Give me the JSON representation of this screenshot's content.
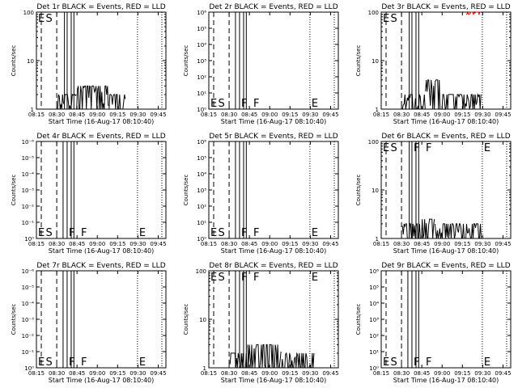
{
  "chart_data": [
    {
      "type": "line",
      "title": "Det 1r  BLACK = Events, RED = LLD",
      "xlabel": "Start Time (16-Aug-17 08:10:40)",
      "ylabel": "Counts/sec",
      "x_ticks": [
        "08:15",
        "08:30",
        "08:45",
        "09:00",
        "09:15",
        "09:30",
        "09:45"
      ],
      "y_ticks": [
        "1",
        "10",
        "100"
      ],
      "ylim": [
        1,
        100
      ],
      "y_scale": "log",
      "xlim_min": [
        4.3,
        100
      ],
      "dashed_lines_min": [
        4.3,
        19.3
      ],
      "solid_lines_min": [
        25,
        27,
        30,
        32
      ],
      "dotted_lines_min": [
        79,
        97
      ],
      "markers": [
        {
          "label": "E",
          "x_min": 4.3,
          "pos": "top"
        },
        {
          "label": "S",
          "x_min": 10,
          "pos": "top"
        }
      ],
      "series": [
        {
          "color": "#000000",
          "segments": [
            {
              "from": 20,
              "to": 34,
              "ymin": 1,
              "ymax": 2
            },
            {
              "from": 34,
              "to": 58,
              "ymin": 1,
              "ymax": 3
            },
            {
              "from": 58,
              "to": 70,
              "ymin": 1,
              "ymax": 2
            }
          ]
        }
      ]
    },
    {
      "type": "line",
      "title": "Det 2r  BLACK = Events, RED = LLD",
      "xlabel": "Start Time (16-Aug-17 08:10:40)",
      "ylabel": "Counts/sec",
      "x_ticks": [
        "08:15",
        "08:30",
        "08:45",
        "09:00",
        "09:15",
        "09:30",
        "09:45"
      ],
      "y_ticks": [
        "10⁰",
        "10¹",
        "10²",
        "10³",
        "10⁴",
        "10⁵",
        "10⁶"
      ],
      "ylim": [
        0,
        6
      ],
      "y_scale": "exponent",
      "xlim_min": [
        4.3,
        100
      ],
      "dashed_lines_min": [
        4.3,
        19.3
      ],
      "solid_lines_min": [
        24,
        27,
        30,
        32
      ],
      "dotted_lines_min": [
        79,
        97
      ],
      "markers": [
        {
          "label": "E",
          "x_min": 4.3,
          "pos": "bottom"
        },
        {
          "label": "S",
          "x_min": 10,
          "pos": "bottom"
        },
        {
          "label": "F",
          "x_min": 27,
          "pos": "bottom"
        },
        {
          "label": "F",
          "x_min": 36,
          "pos": "bottom"
        },
        {
          "label": "E",
          "x_min": 79,
          "pos": "bottom"
        }
      ],
      "series": []
    },
    {
      "type": "line",
      "title": "Det 3r  BLACK = Events, RED = LLD",
      "xlabel": "Start Time (16-Aug-17 08:10:40)",
      "ylabel": "Counts/sec",
      "x_ticks": [
        "08:15",
        "08:30",
        "08:45",
        "09:00",
        "09:15",
        "09:30",
        "09:45"
      ],
      "y_ticks": [
        "1",
        "10",
        "100"
      ],
      "ylim": [
        1,
        100
      ],
      "y_scale": "log",
      "xlim_min": [
        4.3,
        100
      ],
      "dashed_lines_min": [
        4.3,
        19.3
      ],
      "solid_lines_min": [
        25,
        27,
        30,
        32
      ],
      "dotted_lines_min": [
        79,
        97
      ],
      "markers": [
        {
          "label": "E",
          "x_min": 4.3,
          "pos": "top"
        },
        {
          "label": "S",
          "x_min": 10,
          "pos": "top"
        }
      ],
      "series": [
        {
          "color": "#000000",
          "segments": [
            {
              "from": 20,
              "to": 37,
              "ymin": 1,
              "ymax": 2
            },
            {
              "from": 37,
              "to": 48,
              "ymin": 1,
              "ymax": 4
            },
            {
              "from": 48,
              "to": 78,
              "ymin": 1,
              "ymax": 2
            }
          ]
        },
        {
          "color": "#ff0000",
          "segments": [
            {
              "from": 67,
              "to": 78,
              "ymin": 90,
              "ymax": 100
            }
          ]
        }
      ]
    },
    {
      "type": "line",
      "title": "Det 4r  BLACK = Events, RED = LLD",
      "xlabel": "Start Time (16-Aug-17 08:10:40)",
      "ylabel": "Counts/sec",
      "x_ticks": [
        "08:15",
        "08:30",
        "08:45",
        "09:00",
        "09:15",
        "09:30",
        "09:45"
      ],
      "y_ticks": [
        "10⁰",
        "10⁻¹",
        "10⁻²",
        "10⁻³",
        "10⁻⁴",
        "10⁻⁵",
        "10⁻⁶"
      ],
      "ylim": [
        0,
        6
      ],
      "y_scale": "exponent",
      "xlim_min": [
        4.3,
        100
      ],
      "dashed_lines_min": [
        4.3,
        19.3
      ],
      "solid_lines_min": [
        24,
        27,
        30,
        32
      ],
      "dotted_lines_min": [
        79,
        97
      ],
      "markers": [
        {
          "label": "E",
          "x_min": 4.3,
          "pos": "bottom"
        },
        {
          "label": "S",
          "x_min": 10,
          "pos": "bottom"
        },
        {
          "label": "F",
          "x_min": 27,
          "pos": "bottom"
        },
        {
          "label": "F",
          "x_min": 36,
          "pos": "bottom"
        },
        {
          "label": "E",
          "x_min": 79,
          "pos": "bottom"
        }
      ],
      "series": []
    },
    {
      "type": "line",
      "title": "Det 5r  BLACK = Events, RED = LLD",
      "xlabel": "Start Time (16-Aug-17 08:10:40)",
      "ylabel": "Counts/sec",
      "x_ticks": [
        "08:15",
        "08:30",
        "08:45",
        "09:00",
        "09:15",
        "09:30",
        "09:45"
      ],
      "y_ticks": [
        "10⁰",
        "10¹",
        "10²",
        "10³",
        "10⁴",
        "10⁵",
        "10⁶"
      ],
      "ylim": [
        0,
        6
      ],
      "y_scale": "exponent",
      "xlim_min": [
        4.3,
        100
      ],
      "dashed_lines_min": [
        4.3,
        19.3
      ],
      "solid_lines_min": [
        24,
        27,
        30,
        32
      ],
      "dotted_lines_min": [
        79,
        97
      ],
      "markers": [
        {
          "label": "E",
          "x_min": 4.3,
          "pos": "bottom"
        },
        {
          "label": "S",
          "x_min": 10,
          "pos": "bottom"
        },
        {
          "label": "F",
          "x_min": 27,
          "pos": "bottom"
        },
        {
          "label": "F",
          "x_min": 36,
          "pos": "bottom"
        },
        {
          "label": "E",
          "x_min": 79,
          "pos": "bottom"
        }
      ],
      "series": []
    },
    {
      "type": "line",
      "title": "Det 6r  BLACK = Events, RED = LLD",
      "xlabel": "Start Time (16-Aug-17 08:10:40)",
      "ylabel": "Counts/sec",
      "x_ticks": [
        "08:15",
        "08:30",
        "08:45",
        "09:00",
        "09:15",
        "09:30",
        "09:45"
      ],
      "y_ticks": [
        "1",
        "10",
        "100"
      ],
      "ylim": [
        1,
        100
      ],
      "y_scale": "log",
      "xlim_min": [
        4.3,
        100
      ],
      "dashed_lines_min": [
        4.3,
        19.3
      ],
      "solid_lines_min": [
        25,
        27,
        30,
        32
      ],
      "dotted_lines_min": [
        79,
        97
      ],
      "markers": [
        {
          "label": "E",
          "x_min": 4.3,
          "pos": "top"
        },
        {
          "label": "S",
          "x_min": 10,
          "pos": "top"
        },
        {
          "label": "F",
          "x_min": 27,
          "pos": "top"
        },
        {
          "label": "F",
          "x_min": 36,
          "pos": "top"
        },
        {
          "label": "E",
          "x_min": 79,
          "pos": "top"
        }
      ],
      "series": [
        {
          "color": "#000000",
          "segments": [
            {
              "from": 20,
              "to": 34,
              "ymin": 1,
              "ymax": 2
            },
            {
              "from": 34,
              "to": 44,
              "ymin": 1,
              "ymax": 2.5
            },
            {
              "from": 44,
              "to": 79,
              "ymin": 1,
              "ymax": 2
            }
          ]
        }
      ]
    },
    {
      "type": "line",
      "title": "Det 7r  BLACK = Events, RED = LLD",
      "xlabel": "Start Time (16-Aug-17 08:10:40)",
      "ylabel": "Counts/sec",
      "x_ticks": [
        "08:15",
        "08:30",
        "08:45",
        "09:00",
        "09:15",
        "09:30",
        "09:45"
      ],
      "y_ticks": [
        "10⁰",
        "10⁻¹",
        "10⁻²",
        "10⁻³",
        "10⁻⁴",
        "10⁻⁵",
        "10⁻⁶"
      ],
      "ylim": [
        0,
        6
      ],
      "y_scale": "exponent",
      "xlim_min": [
        4.3,
        100
      ],
      "dashed_lines_min": [
        4.3,
        19.3
      ],
      "solid_lines_min": [
        24,
        27,
        30,
        32
      ],
      "dotted_lines_min": [
        79,
        97
      ],
      "markers": [
        {
          "label": "E",
          "x_min": 4.3,
          "pos": "bottom"
        },
        {
          "label": "S",
          "x_min": 10,
          "pos": "bottom"
        },
        {
          "label": "F",
          "x_min": 27,
          "pos": "bottom"
        },
        {
          "label": "F",
          "x_min": 36,
          "pos": "bottom"
        },
        {
          "label": "E",
          "x_min": 79,
          "pos": "bottom"
        }
      ],
      "series": []
    },
    {
      "type": "line",
      "title": "Det 8r  BLACK = Events, RED = LLD",
      "xlabel": "Start Time (16-Aug-17 08:10:40)",
      "ylabel": "Counts/sec",
      "x_ticks": [
        "08:15",
        "08:30",
        "08:45",
        "09:00",
        "09:15",
        "09:30",
        "09:45"
      ],
      "y_ticks": [
        "1",
        "10",
        "100"
      ],
      "ylim": [
        1,
        100
      ],
      "y_scale": "log",
      "xlim_min": [
        4.3,
        100
      ],
      "dashed_lines_min": [
        4.3,
        19.3
      ],
      "solid_lines_min": [
        24,
        27,
        30,
        32
      ],
      "dotted_lines_min": [
        79,
        97
      ],
      "markers": [
        {
          "label": "E",
          "x_min": 4.3,
          "pos": "top"
        },
        {
          "label": "S",
          "x_min": 10,
          "pos": "top"
        },
        {
          "label": "F",
          "x_min": 27,
          "pos": "top"
        },
        {
          "label": "F",
          "x_min": 36,
          "pos": "top"
        },
        {
          "label": "E",
          "x_min": 79,
          "pos": "top"
        }
      ],
      "series": [
        {
          "color": "#000000",
          "segments": [
            {
              "from": 20,
              "to": 33,
              "ymin": 1,
              "ymax": 2
            },
            {
              "from": 33,
              "to": 58,
              "ymin": 1,
              "ymax": 3
            },
            {
              "from": 58,
              "to": 82,
              "ymin": 1,
              "ymax": 2
            }
          ]
        }
      ]
    },
    {
      "type": "line",
      "title": "Det 9r  BLACK = Events, RED = LLD",
      "xlabel": "Start Time (16-Aug-17 08:10:40)",
      "ylabel": "Counts/sec",
      "x_ticks": [
        "08:15",
        "08:30",
        "08:45",
        "09:00",
        "09:15",
        "09:30",
        "09:45"
      ],
      "y_ticks": [
        "10⁰",
        "10¹",
        "10²",
        "10³",
        "10⁴",
        "10⁵",
        "10⁶"
      ],
      "ylim": [
        0,
        6
      ],
      "y_scale": "exponent",
      "xlim_min": [
        4.3,
        100
      ],
      "dashed_lines_min": [
        4.3,
        19.3
      ],
      "solid_lines_min": [
        24,
        27,
        30,
        32
      ],
      "dotted_lines_min": [
        79,
        97
      ],
      "markers": [
        {
          "label": "E",
          "x_min": 4.3,
          "pos": "bottom"
        },
        {
          "label": "S",
          "x_min": 10,
          "pos": "bottom"
        },
        {
          "label": "F",
          "x_min": 27,
          "pos": "bottom"
        },
        {
          "label": "F",
          "x_min": 36,
          "pos": "bottom"
        },
        {
          "label": "E",
          "x_min": 79,
          "pos": "bottom"
        }
      ],
      "series": []
    }
  ]
}
